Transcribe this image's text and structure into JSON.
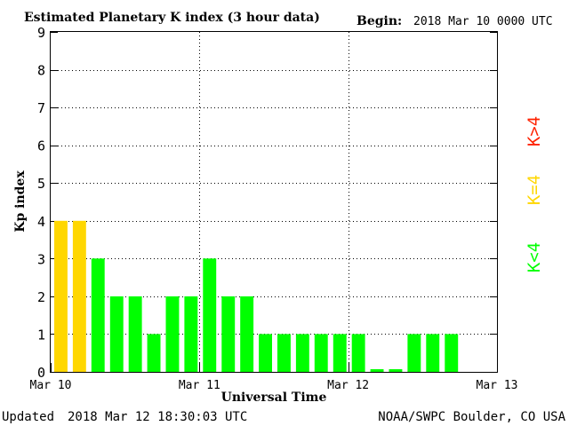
{
  "header": {
    "title": "Estimated Planetary K index (3 hour data)",
    "begin_label": "Begin:",
    "begin_value": "2018 Mar 10 0000 UTC"
  },
  "footer": {
    "updated_label": "Updated",
    "updated_value": "2018 Mar 12 18:30:03 UTC",
    "source": "NOAA/SWPC Boulder, CO USA"
  },
  "legend": {
    "k_gt_4": "K>4",
    "k_eq_4": "K=4",
    "k_lt_4": "K<4"
  },
  "colors": {
    "k_lt_4": "#00ff00",
    "k_eq_4": "#ffd700",
    "k_gt_4": "#ff2200"
  },
  "chart_data": {
    "type": "bar",
    "title": "Estimated Planetary K index (3 hour data)",
    "xlabel": "Universal Time",
    "ylabel": "Kp index",
    "ylim": [
      0,
      9
    ],
    "yticks": [
      "0",
      "1",
      "2",
      "3",
      "4",
      "5",
      "6",
      "7",
      "8",
      "9"
    ],
    "xticks": [
      "Mar 10",
      "Mar 11",
      "Mar 12",
      "Mar 13"
    ],
    "x_interval_hours": 3,
    "grid": true,
    "values": [
      4,
      4,
      3,
      2,
      2,
      1,
      2,
      2,
      3,
      2,
      2,
      1,
      1,
      1,
      1,
      1,
      1,
      0.07,
      0.07,
      1,
      1,
      1
    ]
  }
}
